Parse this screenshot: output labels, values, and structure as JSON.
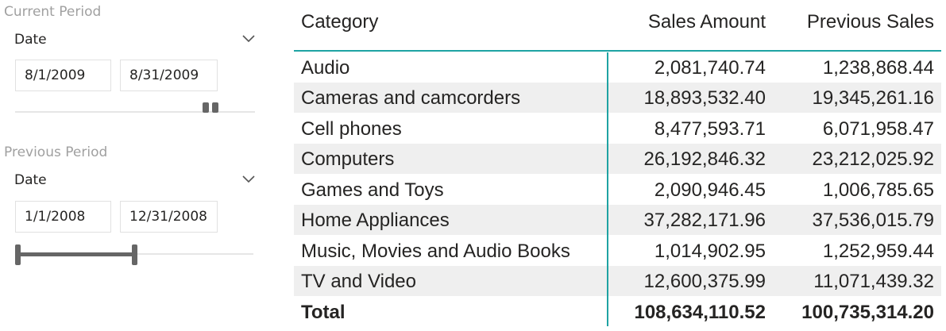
{
  "current_period": {
    "title": "Current Period",
    "field": "Date",
    "start": "8/1/2009",
    "end": "8/31/2009"
  },
  "previous_period": {
    "title": "Previous Period",
    "field": "Date",
    "start": "1/1/2008",
    "end": "12/31/2008"
  },
  "table": {
    "headers": [
      "Category",
      "Sales Amount",
      "Previous Sales"
    ],
    "rows": [
      [
        "Audio",
        "2,081,740.74",
        "1,238,868.44"
      ],
      [
        "Cameras and camcorders",
        "18,893,532.40",
        "19,345,261.16"
      ],
      [
        "Cell phones",
        "8,477,593.71",
        "6,071,958.47"
      ],
      [
        "Computers",
        "26,192,846.32",
        "23,212,025.92"
      ],
      [
        "Games and Toys",
        "2,090,946.45",
        "1,006,785.65"
      ],
      [
        "Home Appliances",
        "37,282,171.96",
        "37,536,015.79"
      ],
      [
        "Music, Movies and Audio Books",
        "1,014,902.95",
        "1,252,959.44"
      ],
      [
        "TV and Video",
        "12,600,375.99",
        "11,071,439.32"
      ]
    ],
    "total": [
      "Total",
      "108,634,110.52",
      "100,735,314.20"
    ]
  },
  "colors": {
    "accent": "#1fa3a3",
    "alt_row": "#efefef",
    "slider": "#666666"
  }
}
